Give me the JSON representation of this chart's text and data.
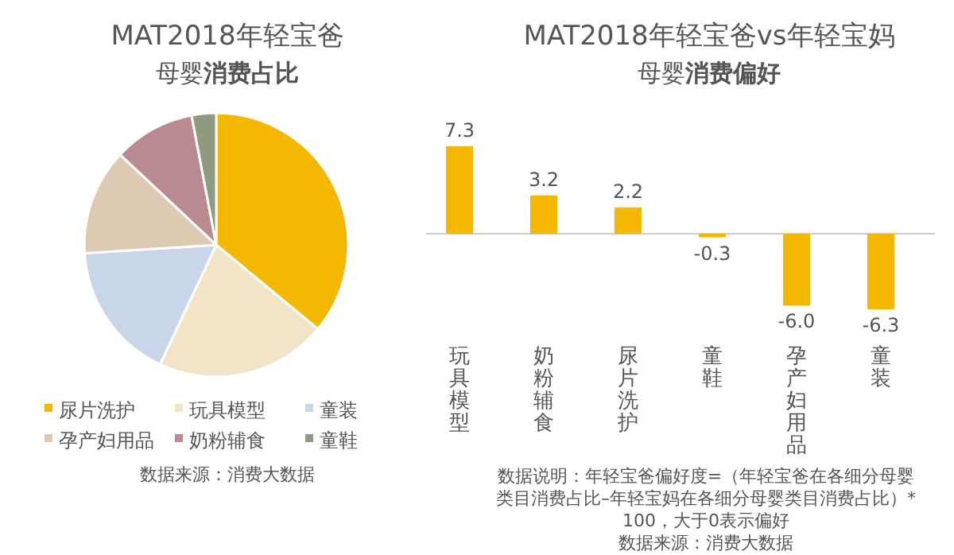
{
  "chart_data": [
    {
      "type": "pie",
      "title": "MAT2018年轻宝爸",
      "subtitle": "母婴**消费占比**",
      "categories": [
        "尿片洗护",
        "玩具模型",
        "童装",
        "孕产妇用品",
        "奶粉辅食",
        "童鞋"
      ],
      "values": [
        36,
        21,
        17,
        13,
        10,
        3
      ],
      "colors": [
        "#f5b800",
        "#f3e4c8",
        "#c9d5e8",
        "#dccbb2",
        "#b98b90",
        "#8f9a7e"
      ],
      "legend": "bottom",
      "annotations": [
        "数据来源：消费大数据"
      ]
    },
    {
      "type": "bar",
      "title": "MAT2018年轻宝爸vs年轻宝妈",
      "subtitle": "母婴**消费偏好**",
      "categories": [
        "玩具模型",
        "奶粉辅食",
        "尿片洗护",
        "童鞋",
        "孕产妇用品",
        "童装"
      ],
      "values": [
        7.3,
        3.2,
        2.2,
        -0.3,
        -6.0,
        -6.3
      ],
      "color": "#f5b800",
      "value_labels": [
        "7.3",
        "3.2",
        "2.2",
        "-0.3",
        "-6.0",
        "-6.3"
      ],
      "annotations": [
        "数据说明：年轻宝爸偏好度=（年轻宝爸在各细分母婴类目消费占比–年轻宝妈在各细分母婴类目消费占比）*100，大于0表示偏好",
        "数据来源：消费大数据"
      ]
    }
  ]
}
